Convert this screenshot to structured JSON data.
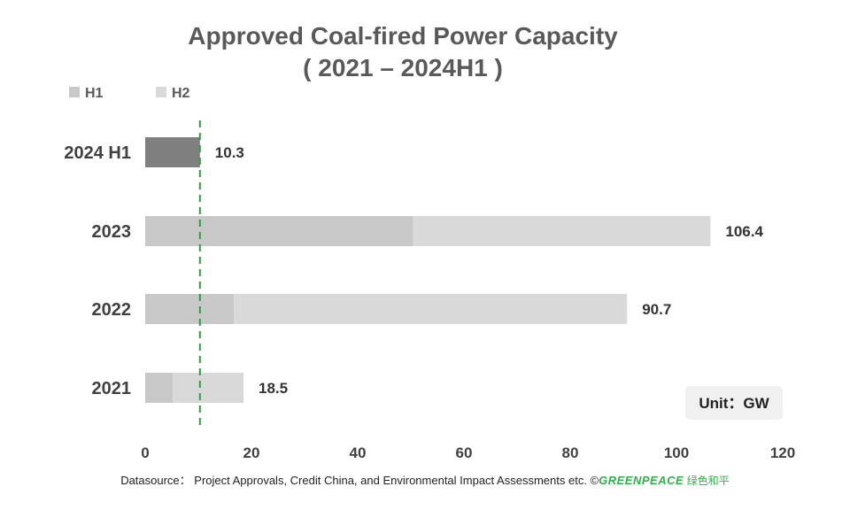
{
  "chart_data": {
    "type": "bar",
    "orientation": "horizontal",
    "stacked": true,
    "title": "Approved Coal-fired Power Capacity",
    "subtitle": "( 2021 – 2024H1 )",
    "categories": [
      "2024 H1",
      "2023",
      "2022",
      "2021"
    ],
    "series": [
      {
        "name": "H1",
        "values": [
          10.3,
          50.4,
          16.7,
          5.2
        ],
        "color": "#c8c8c8"
      },
      {
        "name": "H2",
        "values": [
          0,
          56.0,
          74.0,
          13.3
        ],
        "color": "#d9d9d9"
      }
    ],
    "highlight": {
      "category": "2024 H1",
      "color": "#7f7f7f"
    },
    "totals": [
      "10.3",
      "106.4",
      "90.7",
      "18.5"
    ],
    "xlim": [
      0,
      120
    ],
    "xticks": [
      "0",
      "20",
      "40",
      "60",
      "80",
      "100",
      "120"
    ],
    "reference_line": {
      "x": 10.3,
      "style": "dashed",
      "color": "#2e9e3e"
    },
    "legend_position": "top-left",
    "grid": false,
    "unit_label": "Unit：GW"
  },
  "footer": {
    "source": "Datasource： Project Approvals, Credit China, and Environmental Impact Assessments etc.  ©",
    "brand": "GREENPEACE",
    "brand_cn": "绿色和平"
  }
}
